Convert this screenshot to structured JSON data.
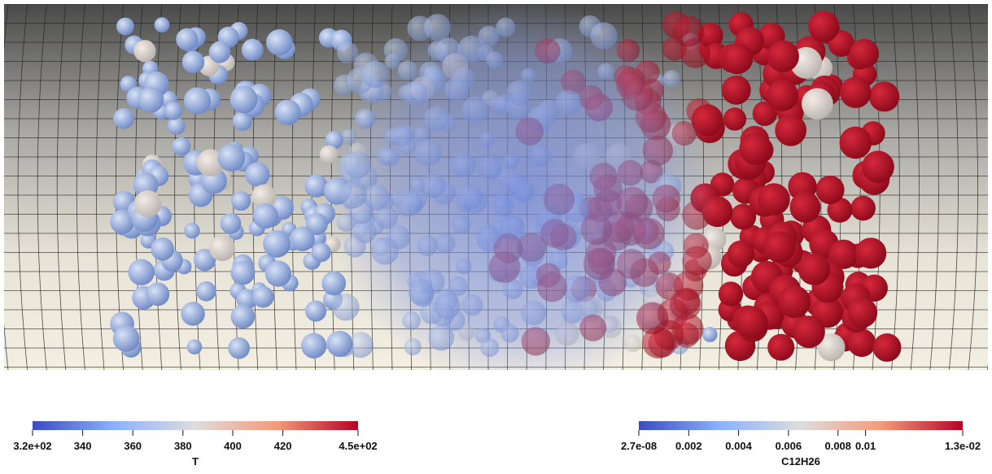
{
  "colorbars": [
    {
      "title": "T",
      "tick_labels": [
        "3.2e+02",
        "340",
        "360",
        "380",
        "400",
        "420",
        "4.5e+02"
      ]
    },
    {
      "title": "C12H26",
      "tick_labels": [
        "2.7e-08",
        "0.002",
        "0.004",
        "0.006",
        "0.008",
        "0.01",
        "1.3e-02"
      ]
    }
  ]
}
